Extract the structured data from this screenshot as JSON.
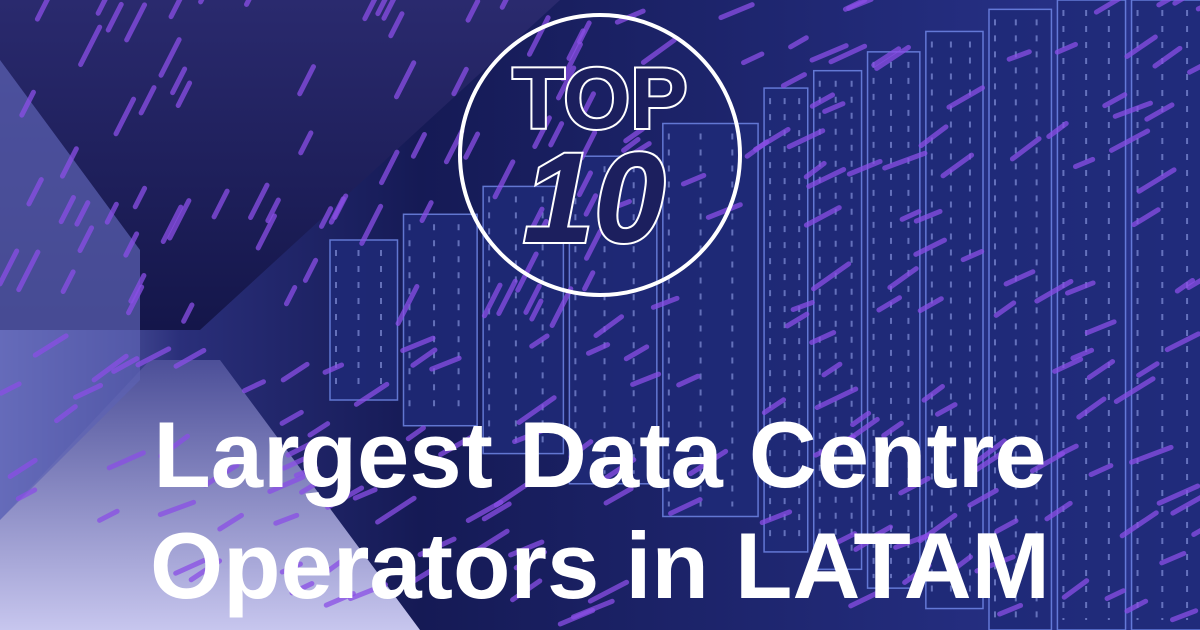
{
  "badge": {
    "line1": "TOP",
    "line2": "10"
  },
  "title": {
    "lines": [
      "Largest Data Centre",
      "Operators in LATAM"
    ]
  }
}
